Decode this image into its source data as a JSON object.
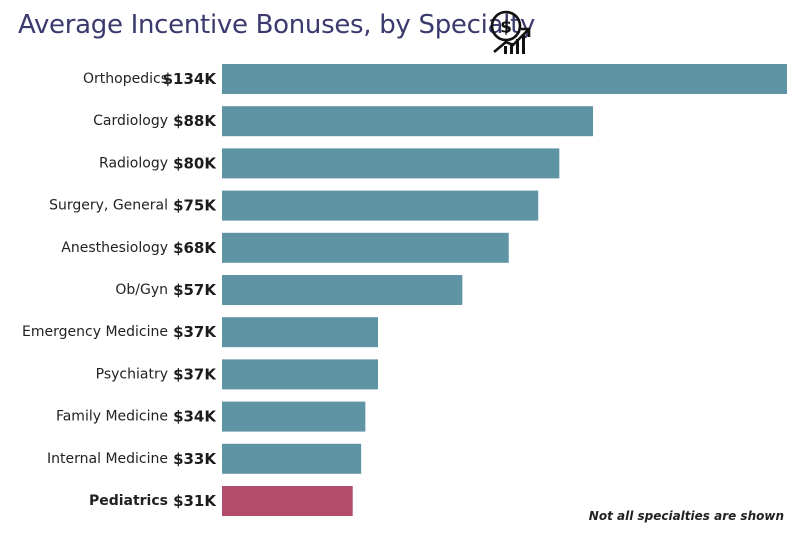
{
  "chart_data": {
    "type": "bar",
    "orientation": "horizontal",
    "title": "Average Incentive Bonuses, by Specialty",
    "categories": [
      "Orthopedics",
      "Cardiology",
      "Radiology",
      "Surgery, General",
      "Anesthesiology",
      "Ob/Gyn",
      "Emergency Medicine",
      "Psychiatry",
      "Family Medicine",
      "Internal Medicine",
      "Pediatrics"
    ],
    "values": [
      134,
      88,
      80,
      75,
      68,
      57,
      37,
      37,
      34,
      33,
      31
    ],
    "value_labels": [
      "$134K",
      "$88K",
      "$80K",
      "$75K",
      "$68K",
      "$57K",
      "$37K",
      "$37K",
      "$34K",
      "$33K",
      "$31K"
    ],
    "unit": "$K",
    "xlim": [
      0,
      134
    ],
    "grid": false,
    "highlight_category": "Pediatrics",
    "colors": {
      "bar": "#5f94a4",
      "highlight": "#b14d6a",
      "title": "#3b3a6e"
    },
    "footnote": "Not all specialties are shown"
  },
  "icons": {
    "title_icon": "dollar-growth-icon"
  }
}
